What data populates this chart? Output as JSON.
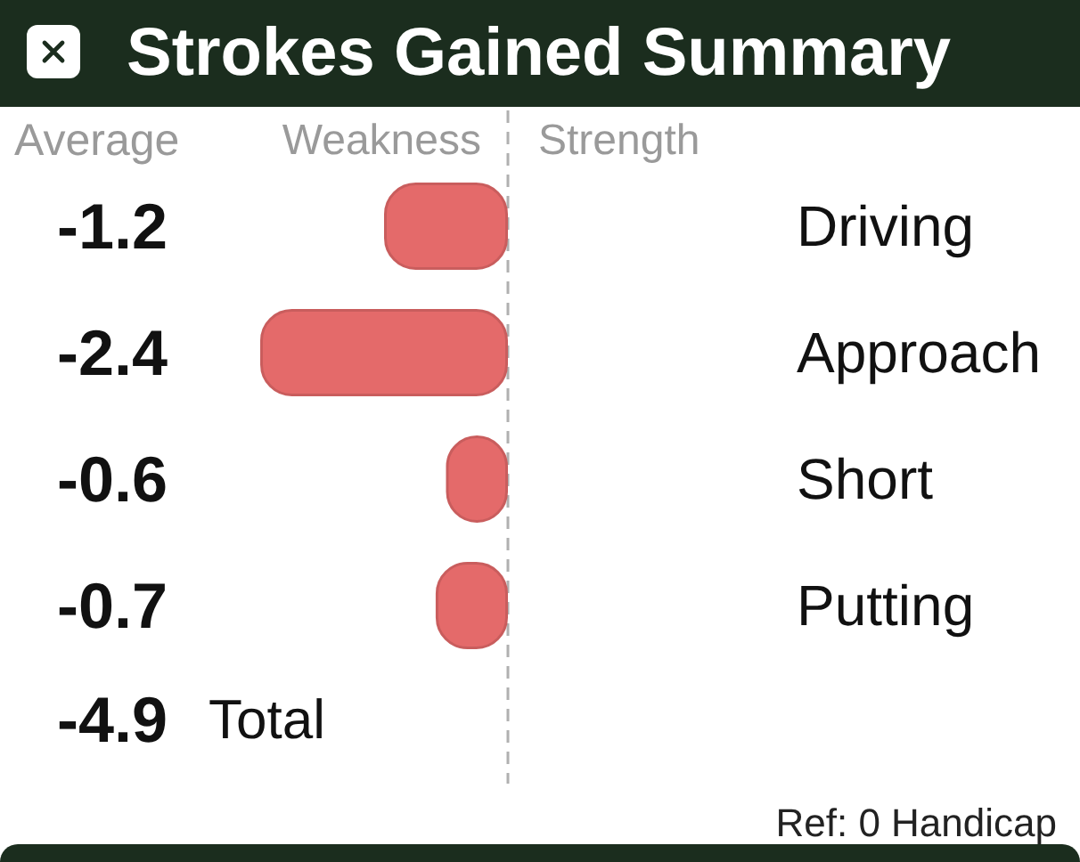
{
  "chart_data": {
    "type": "bar",
    "orientation": "horizontal",
    "title": "Strokes Gained Summary",
    "categories": [
      "Driving",
      "Approach",
      "Short",
      "Putting"
    ],
    "values": [
      -1.2,
      -2.4,
      -0.6,
      -0.7
    ],
    "color": "#e46a6a",
    "data_labels": true,
    "tick_labels": "y",
    "ref_lines": [
      {
        "axis": "x",
        "value": 0,
        "color": "#b0b0b0",
        "line_style": "dashed"
      }
    ],
    "annotations": [
      "Average",
      "Weakness",
      "Strength",
      "-4.9",
      "Total",
      "Ref: 0 Handicap"
    ]
  }
}
